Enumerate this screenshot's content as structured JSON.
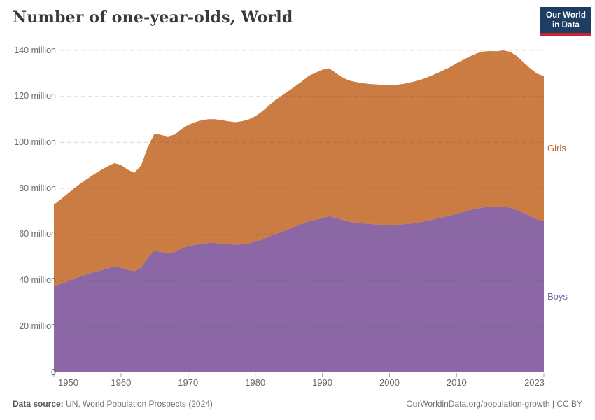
{
  "header": {
    "title": "Number of one-year-olds, World"
  },
  "logo": {
    "line1": "Our World",
    "line2": "in Data",
    "bg_color": "#1d3d63",
    "bar_color": "#c7252d"
  },
  "chart_data": {
    "type": "area",
    "stacked": true,
    "title": "Number of one-year-olds, World",
    "xlabel": "",
    "ylabel": "",
    "xlim": [
      1950,
      2023
    ],
    "ylim": [
      0,
      140
    ],
    "grid": "horizontal-dashed",
    "legend_position": "right-edge-labels",
    "unit": "million",
    "years": [
      1950,
      1951,
      1952,
      1953,
      1954,
      1955,
      1956,
      1957,
      1958,
      1959,
      1960,
      1961,
      1962,
      1963,
      1964,
      1965,
      1966,
      1967,
      1968,
      1969,
      1970,
      1971,
      1972,
      1973,
      1974,
      1975,
      1976,
      1977,
      1978,
      1979,
      1980,
      1981,
      1982,
      1983,
      1984,
      1985,
      1986,
      1987,
      1988,
      1989,
      1990,
      1991,
      1992,
      1993,
      1994,
      1995,
      1996,
      1997,
      1998,
      1999,
      2000,
      2001,
      2002,
      2003,
      2004,
      2005,
      2006,
      2007,
      2008,
      2009,
      2010,
      2011,
      2012,
      2013,
      2014,
      2015,
      2016,
      2017,
      2018,
      2019,
      2020,
      2021,
      2022,
      2023
    ],
    "series": [
      {
        "name": "Boys",
        "color": "#8C67A6",
        "label_color": "#7D62A6",
        "values": [
          37.3,
          38.4,
          39.5,
          40.7,
          41.8,
          42.8,
          43.6,
          44.4,
          45.2,
          46.0,
          45.6,
          44.6,
          44.0,
          45.6,
          50.0,
          52.9,
          52.4,
          51.7,
          52.4,
          53.8,
          54.9,
          55.5,
          56.0,
          56.3,
          56.3,
          56.1,
          55.8,
          55.5,
          55.7,
          56.1,
          56.8,
          57.8,
          59.0,
          60.2,
          61.2,
          62.3,
          63.5,
          64.7,
          65.8,
          66.4,
          67.2,
          68.0,
          67.3,
          66.4,
          65.6,
          65.1,
          64.8,
          64.6,
          64.4,
          64.2,
          64.2,
          64.2,
          64.4,
          64.7,
          65.1,
          65.6,
          66.2,
          66.9,
          67.5,
          68.2,
          69.0,
          69.8,
          70.6,
          71.3,
          71.8,
          71.9,
          71.8,
          72.0,
          71.6,
          70.7,
          69.4,
          67.9,
          66.6,
          65.8
        ]
      },
      {
        "name": "Girls",
        "color": "#CA7C42",
        "label_color": "#BE6429",
        "values": [
          35.7,
          36.8,
          38.1,
          39.3,
          40.4,
          41.4,
          42.6,
          43.6,
          44.4,
          45.0,
          44.6,
          43.6,
          42.8,
          44.4,
          48.0,
          50.9,
          50.8,
          50.9,
          51.0,
          52.0,
          52.7,
          53.3,
          53.6,
          53.8,
          53.8,
          53.6,
          53.4,
          53.3,
          53.5,
          53.9,
          54.6,
          55.6,
          57.0,
          58.2,
          59.2,
          60.1,
          61.0,
          61.9,
          63.2,
          63.9,
          64.4,
          64.2,
          62.9,
          61.8,
          61.3,
          61.1,
          61.0,
          60.8,
          60.8,
          60.8,
          60.8,
          60.8,
          61.0,
          61.3,
          61.6,
          62.0,
          62.5,
          63.1,
          63.8,
          64.5,
          65.4,
          66.1,
          66.8,
          67.4,
          67.7,
          67.8,
          67.8,
          68.0,
          67.7,
          66.8,
          65.3,
          64.2,
          63.3,
          63.0
        ]
      }
    ],
    "y_ticks": [
      {
        "value": 0,
        "label": "0"
      },
      {
        "value": 20,
        "label": "20 million"
      },
      {
        "value": 40,
        "label": "40 million"
      },
      {
        "value": 60,
        "label": "60 million"
      },
      {
        "value": 80,
        "label": "80 million"
      },
      {
        "value": 100,
        "label": "100 million"
      },
      {
        "value": 120,
        "label": "120 million"
      },
      {
        "value": 140,
        "label": "140 million"
      }
    ],
    "x_ticks": [
      {
        "year": 1950,
        "label": "1950"
      },
      {
        "year": 1960,
        "label": "1960"
      },
      {
        "year": 1970,
        "label": "1970"
      },
      {
        "year": 1980,
        "label": "1980"
      },
      {
        "year": 1990,
        "label": "1990"
      },
      {
        "year": 2000,
        "label": "2000"
      },
      {
        "year": 2010,
        "label": "2010"
      },
      {
        "year": 2023,
        "label": "2023"
      }
    ]
  },
  "footer": {
    "source_prefix": "Data source:",
    "source_rest": " UN, World Population Prospects (2024)",
    "right_text": "OurWorldinData.org/population-growth | CC BY"
  }
}
